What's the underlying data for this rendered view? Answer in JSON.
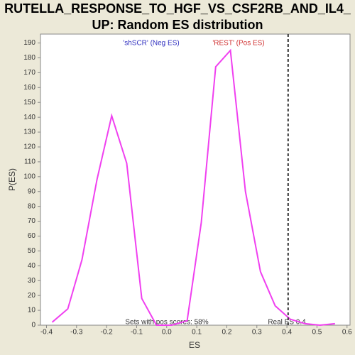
{
  "chart_data": {
    "type": "line",
    "title_lines": [
      "RUTELLA_RESPONSE_TO_HGF_VS_CSF2RB_AND_IL4_",
      "UP: Random ES distribution"
    ],
    "xlabel": "ES",
    "ylabel": "P(ES)",
    "x": [
      -0.381,
      -0.329,
      -0.282,
      -0.232,
      -0.183,
      -0.133,
      -0.083,
      -0.034,
      0.017,
      0.068,
      0.115,
      0.163,
      0.212,
      0.262,
      0.312,
      0.361,
      0.411,
      0.461,
      0.51,
      0.56
    ],
    "values": [
      2,
      11,
      44,
      98,
      141,
      109,
      18,
      0,
      0,
      3,
      69,
      174,
      185,
      90,
      36,
      13,
      4,
      1,
      0,
      1
    ],
    "color": "#f040f0",
    "xlim": [
      -0.42,
      0.61
    ],
    "xticks": [
      -0.4,
      -0.3,
      -0.2,
      -0.1,
      {
        "value": 0,
        "label": "0.0"
      },
      0.1,
      0.2,
      0.3,
      0.4,
      0.5,
      0.6
    ],
    "ylim": [
      0,
      196
    ],
    "yticks": [
      0,
      10,
      20,
      30,
      40,
      50,
      60,
      70,
      80,
      90,
      100,
      110,
      120,
      130,
      140,
      150,
      160,
      170,
      180,
      190
    ],
    "marker_x": 0.404,
    "annotations": {
      "neg": "'shSCR' (Neg ES)",
      "pos": "'REST' (Pos ES)",
      "pos_scores": "Sets with pos scores: 58%",
      "real_es": "Real ES 0.4"
    }
  }
}
